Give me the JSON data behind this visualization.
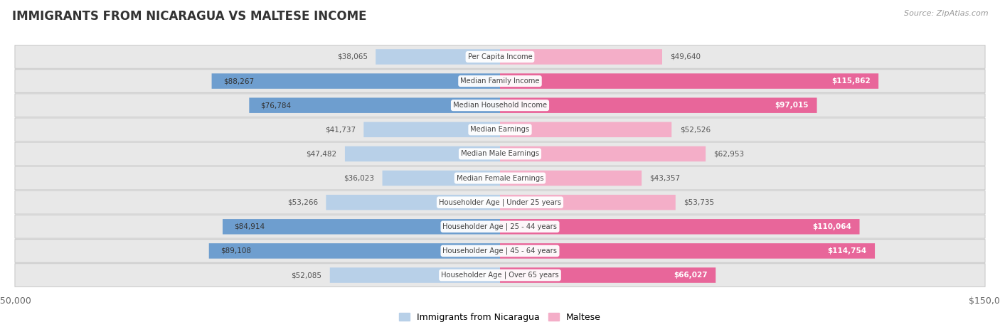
{
  "title": "IMMIGRANTS FROM NICARAGUA VS MALTESE INCOME",
  "source": "Source: ZipAtlas.com",
  "categories": [
    "Per Capita Income",
    "Median Family Income",
    "Median Household Income",
    "Median Earnings",
    "Median Male Earnings",
    "Median Female Earnings",
    "Householder Age | Under 25 years",
    "Householder Age | 25 - 44 years",
    "Householder Age | 45 - 64 years",
    "Householder Age | Over 65 years"
  ],
  "nicaragua_values": [
    38065,
    88267,
    76784,
    41737,
    47482,
    36023,
    53266,
    84914,
    89108,
    52085
  ],
  "maltese_values": [
    49640,
    115862,
    97015,
    52526,
    62953,
    43357,
    53735,
    110064,
    114754,
    66027
  ],
  "nicaragua_labels": [
    "$38,065",
    "$88,267",
    "$76,784",
    "$41,737",
    "$47,482",
    "$36,023",
    "$53,266",
    "$84,914",
    "$89,108",
    "$52,085"
  ],
  "maltese_labels": [
    "$49,640",
    "$115,862",
    "$97,015",
    "$52,526",
    "$62,953",
    "$43,357",
    "$53,735",
    "$110,064",
    "$114,754",
    "$66,027"
  ],
  "nicaragua_color_light": "#b8d0e8",
  "nicaragua_color_dark": "#6e9ecf",
  "maltese_color_light": "#f4aec8",
  "maltese_color_dark": "#e8669a",
  "row_bg_color": "#e8e8e8",
  "row_bg_gap_color": "#ffffff",
  "xlim": 150000,
  "legend_nicaragua": "Immigrants from Nicaragua",
  "legend_maltese": "Maltese",
  "inside_label_threshold": 65000
}
